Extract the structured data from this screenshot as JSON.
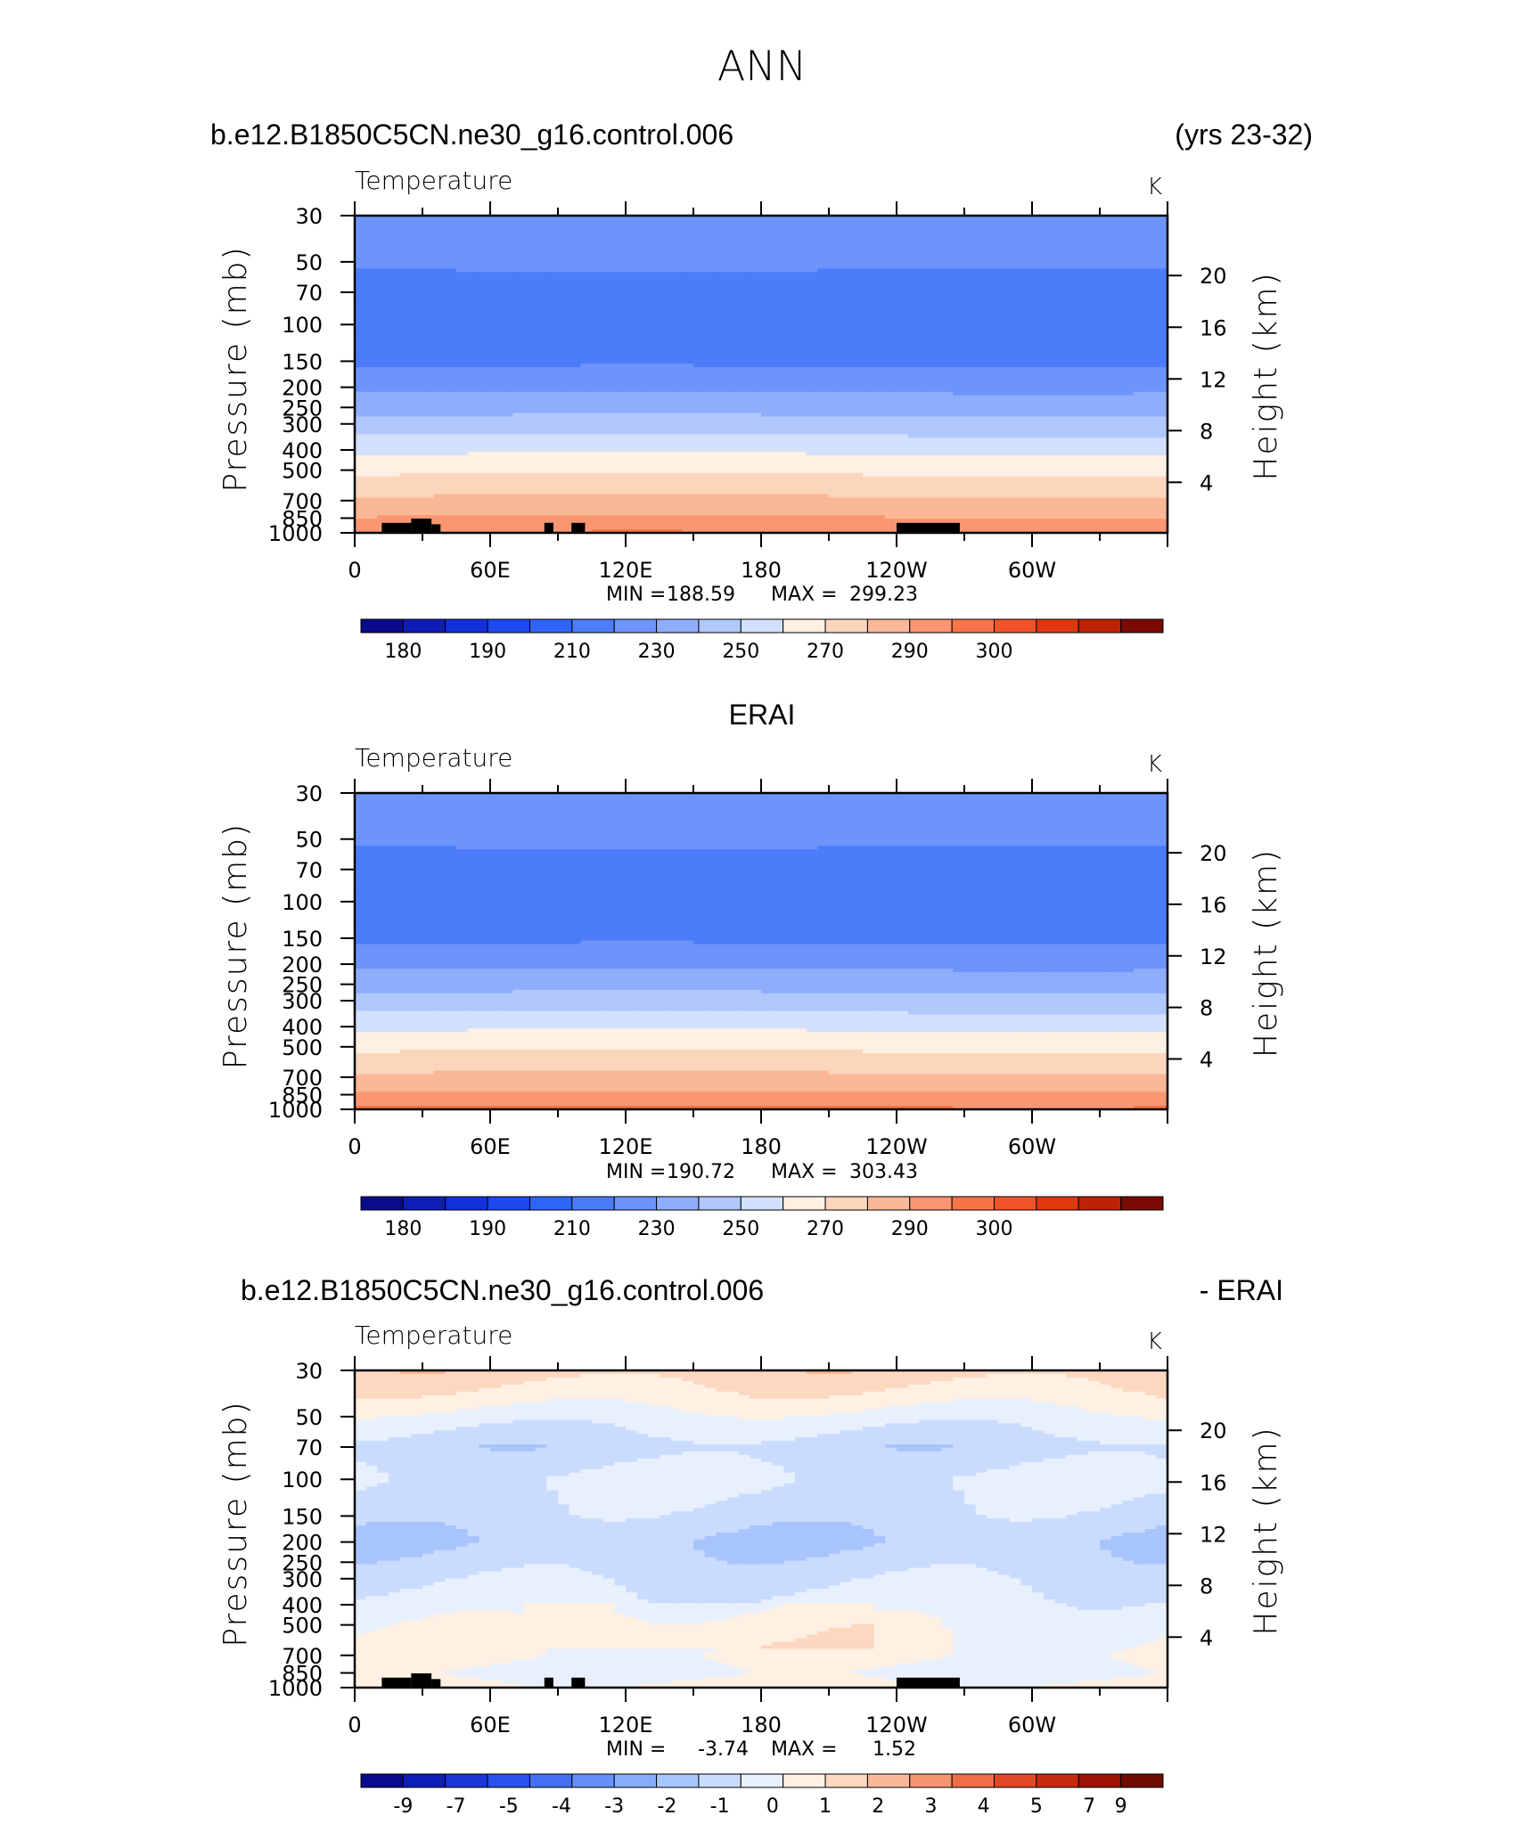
{
  "page": {
    "title": "ANN",
    "panel1_left": "b.e12.B1850C5CN.ne30_g16.control.006",
    "panel1_right": "(yrs 23-32)",
    "panel2_center": "ERAI",
    "panel3_left": "b.e12.B1850C5CN.ne30_g16.control.006",
    "panel3_right": "- ERAI"
  },
  "axes": {
    "left_title": "Pressure (mb)",
    "right_title": "Height (km)",
    "pressure_ticks": [
      "30",
      "50",
      "70",
      "100",
      "150",
      "200",
      "250",
      "300",
      "400",
      "500",
      "700",
      "850",
      "1000"
    ],
    "pressure_values": [
      30,
      50,
      70,
      100,
      150,
      200,
      250,
      300,
      400,
      500,
      700,
      850,
      1000
    ],
    "height_ticks": [
      "20",
      "16",
      "12",
      "8",
      "4"
    ],
    "height_values": [
      20,
      16,
      12,
      8,
      4
    ],
    "lon_ticks": [
      "0",
      "60E",
      "120E",
      "180",
      "120W",
      "60W"
    ],
    "lon_values": [
      0,
      60,
      120,
      180,
      240,
      300
    ],
    "lon_range": [
      0,
      360
    ],
    "pressure_range": [
      1000,
      30
    ],
    "pressure_scale": "log"
  },
  "colors": {
    "temp_scale": [
      "#08088c",
      "#0a14b4",
      "#0e28d8",
      "#1a46f0",
      "#2e64f8",
      "#4678fa",
      "#5e8cfc",
      "#78a0fc",
      "#96b4fd",
      "#b4c8fe",
      "#cfdcfe",
      "#e6eefe",
      "#fef0e2",
      "#fdd9c0",
      "#fcbf9c",
      "#fba47a",
      "#fa8858",
      "#f86a3a",
      "#f24e20",
      "#e0380e",
      "#be2806",
      "#961a04",
      "#6e0c02"
    ],
    "diff_scale": [
      "#08088c",
      "#0c1eb8",
      "#1a3ad8",
      "#2e56ec",
      "#4a70f4",
      "#6a8cf8",
      "#8aa8fa",
      "#aac4fc",
      "#cadcfe",
      "#e8f0fe",
      "#fef0e2",
      "#fcd8c0",
      "#f8b898",
      "#f49470",
      "#ee6e48",
      "#e24826",
      "#c82a0e",
      "#9c1404",
      "#6e0c02"
    ]
  },
  "chart_data": [
    {
      "type": "heatmap",
      "variable": "Temperature",
      "unit": "K",
      "xlabel": "",
      "ylabel": "Pressure (mb)",
      "y2label": "Height (km)",
      "x_range": [
        0,
        360
      ],
      "y_range_mb": [
        1000,
        30
      ],
      "stats": {
        "min_label": "MIN =",
        "min": "188.59",
        "max_label": "MAX =",
        "max": "299.23"
      },
      "colorbar": {
        "labels": [
          "180",
          "190",
          "210",
          "230",
          "250",
          "270",
          "290",
          "300"
        ],
        "levels": [
          175,
          180,
          185,
          190,
          200,
          210,
          220,
          230,
          240,
          250,
          260,
          270,
          280,
          290,
          295,
          300,
          305
        ],
        "colors": [
          "#0a0a8c",
          "#0e1cb8",
          "#1230dc",
          "#1c4af0",
          "#2e64f8",
          "#4c7cfa",
          "#6e94fc",
          "#8eaefc",
          "#b0c8fe",
          "#d2e0fe",
          "#fef0e2",
          "#fcd6bc",
          "#fbb896",
          "#fa9672",
          "#f87448",
          "#f2542a",
          "#e0380e",
          "#be2206",
          "#7a0a02"
        ]
      },
      "profile_levels_mb": [
        30,
        40,
        50,
        60,
        100,
        150,
        170,
        200,
        250,
        300,
        400,
        500,
        600,
        700,
        800,
        900,
        1000
      ],
      "profile_temps": [
        216,
        214,
        212,
        208,
        204,
        208,
        212,
        218,
        226,
        234,
        248,
        258,
        266,
        272,
        278,
        284,
        290
      ]
    },
    {
      "type": "heatmap",
      "variable": "Temperature",
      "unit": "K",
      "xlabel": "",
      "ylabel": "Pressure (mb)",
      "y2label": "Height (km)",
      "x_range": [
        0,
        360
      ],
      "y_range_mb": [
        1000,
        30
      ],
      "stats": {
        "min_label": "MIN =",
        "min": "190.72",
        "max_label": "MAX =",
        "max": "303.43"
      },
      "colorbar": {
        "labels": [
          "180",
          "190",
          "210",
          "230",
          "250",
          "270",
          "290",
          "300"
        ],
        "levels": [
          175,
          180,
          185,
          190,
          200,
          210,
          220,
          230,
          240,
          250,
          260,
          270,
          280,
          290,
          295,
          300,
          305
        ],
        "colors": [
          "#0a0a8c",
          "#0e1cb8",
          "#1230dc",
          "#1c4af0",
          "#2e64f8",
          "#4c7cfa",
          "#6e94fc",
          "#8eaefc",
          "#b0c8fe",
          "#d2e0fe",
          "#fef0e2",
          "#fcd6bc",
          "#fbb896",
          "#fa9672",
          "#f87448",
          "#f2542a",
          "#e0380e",
          "#be2206",
          "#7a0a02"
        ]
      },
      "profile_levels_mb": [
        30,
        40,
        50,
        60,
        100,
        150,
        170,
        200,
        250,
        300,
        400,
        500,
        600,
        700,
        800,
        900,
        1000
      ],
      "profile_temps": [
        216,
        214,
        212,
        208,
        205,
        208,
        212,
        218,
        226,
        234,
        248,
        258,
        266,
        272,
        278,
        286,
        292
      ]
    },
    {
      "type": "heatmap",
      "variable": "Temperature",
      "unit": "K",
      "xlabel": "",
      "ylabel": "Pressure (mb)",
      "y2label": "Height (km)",
      "x_range": [
        0,
        360
      ],
      "y_range_mb": [
        1000,
        30
      ],
      "stats": {
        "min_label": "MIN =",
        "min": "-3.74",
        "max_label": "MAX =",
        "max": "1.52"
      },
      "colorbar": {
        "labels": [
          "-9",
          "-7",
          "-5",
          "-4",
          "-3",
          "-2",
          "-1",
          "0",
          "1",
          "2",
          "3",
          "4",
          "5",
          "7",
          "9"
        ],
        "levels": [
          -10,
          -9,
          -8,
          -7,
          -6,
          -5,
          -4,
          -3,
          -2,
          -1,
          0,
          1,
          2,
          3,
          4,
          5,
          6,
          7,
          8,
          9,
          10
        ],
        "colors": [
          "#0a0a8c",
          "#0e1cb8",
          "#1a36d8",
          "#2a52ec",
          "#4470f4",
          "#6490f8",
          "#86acfa",
          "#a8c4fc",
          "#cadcfe",
          "#e8f0fe",
          "#fef0e2",
          "#fcd8c0",
          "#f8b898",
          "#f49470",
          "#ee6e48",
          "#e24826",
          "#c82a0e",
          "#9c1404",
          "#6e0c02"
        ]
      },
      "profile_levels_mb": [
        30,
        40,
        50,
        70,
        100,
        150,
        200,
        300,
        400,
        500,
        700,
        850,
        1000
      ],
      "profile_diffs": [
        0.6,
        -0.4,
        -1.4,
        -2.6,
        -1.8,
        -2.4,
        -3.0,
        -2.2,
        -1.6,
        -1.2,
        -0.8,
        -1.4,
        -0.6
      ]
    }
  ]
}
